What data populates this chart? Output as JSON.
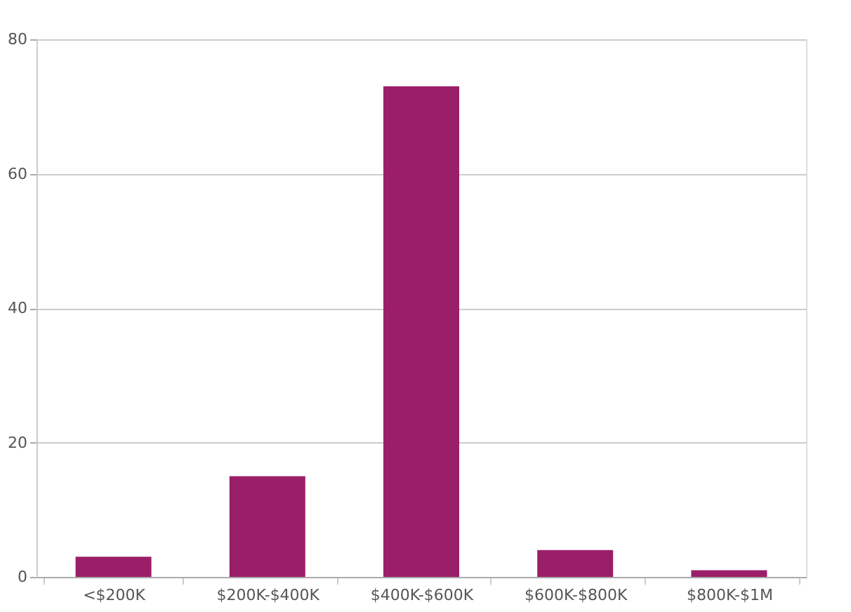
{
  "chart_data": {
    "type": "bar",
    "categories": [
      "<$200K",
      "$200K-$400K",
      "$400K-$600K",
      "$600K-$800K",
      "$800K-$1M"
    ],
    "values": [
      3,
      15,
      73,
      4,
      1
    ],
    "color": "#9b1f68",
    "ylim": [
      0,
      80
    ],
    "yticks": [
      0,
      20,
      40,
      60,
      80
    ],
    "grid": "y"
  }
}
